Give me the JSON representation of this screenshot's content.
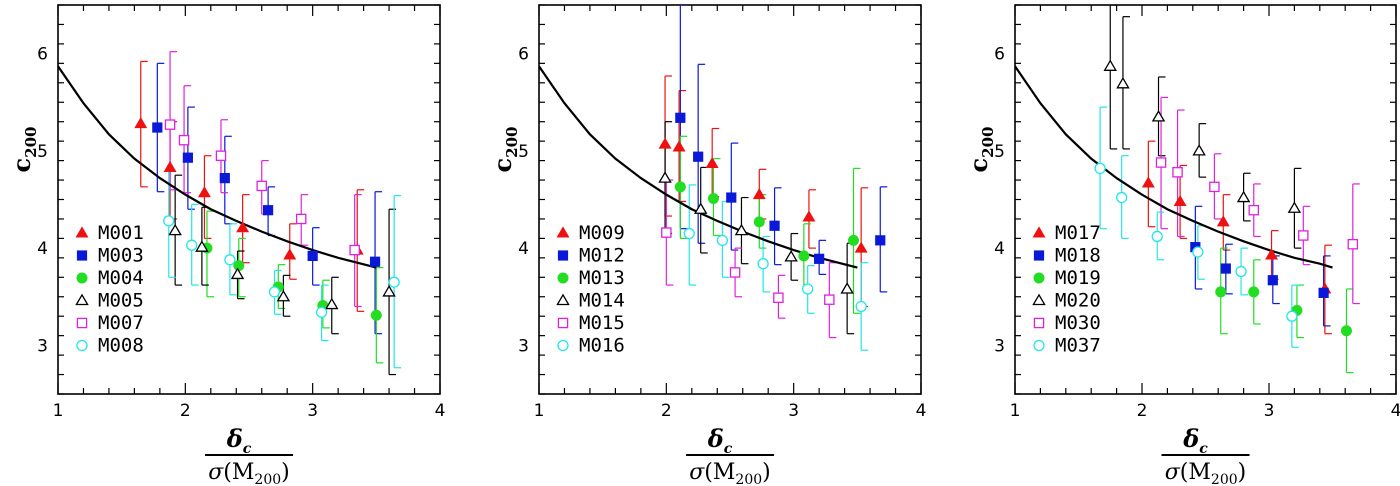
{
  "colors": {
    "red": "#ee1111",
    "blue": "#0a18d8",
    "green": "#22dd22",
    "black": "#000000",
    "magenta": "#dd22dd",
    "cyan": "#22e6e6",
    "curve": "#000000"
  },
  "axis_labels": {
    "y_main": "c",
    "y_sub": "200",
    "x_num_main": "δ",
    "x_num_sub": "c",
    "x_den_sigma": "σ",
    "x_den_open": "(M",
    "x_den_sub": "200",
    "x_den_close": ")"
  },
  "chart_data": [
    {
      "type": "scatter",
      "xlim": [
        1,
        4
      ],
      "ylim": [
        2.5,
        6.5
      ],
      "xticks": [
        1,
        2,
        3,
        4
      ],
      "yticks": [
        3,
        4,
        5,
        6
      ],
      "xlabel": "δc / σ(M200)",
      "ylabel": "c200",
      "legend_position": "lower-left",
      "curve": {
        "x": [
          1.0,
          1.2,
          1.4,
          1.6,
          1.8,
          2.0,
          2.2,
          2.4,
          2.6,
          2.8,
          3.0,
          3.2,
          3.5
        ],
        "y": [
          5.87,
          5.49,
          5.17,
          4.92,
          4.72,
          4.55,
          4.4,
          4.28,
          4.17,
          4.07,
          3.98,
          3.9,
          3.8
        ]
      },
      "series": [
        {
          "name": "M001",
          "marker": "triangle-filled",
          "color": "red",
          "points": [
            {
              "x": 1.65,
              "y": 5.28,
              "lo": 4.63,
              "hi": 5.92
            },
            {
              "x": 1.88,
              "y": 4.83,
              "lo": 4.3,
              "hi": 5.3
            },
            {
              "x": 2.15,
              "y": 4.57,
              "lo": 4.1,
              "hi": 4.95
            },
            {
              "x": 2.45,
              "y": 4.21,
              "lo": 3.85,
              "hi": 4.55
            },
            {
              "x": 2.82,
              "y": 3.93,
              "lo": 3.68,
              "hi": 4.25
            },
            {
              "x": 3.35,
              "y": 3.98,
              "lo": 3.35,
              "hi": 4.6
            }
          ]
        },
        {
          "name": "M003",
          "marker": "square-filled",
          "color": "blue",
          "points": [
            {
              "x": 1.78,
              "y": 5.24,
              "lo": 4.58,
              "hi": 5.9
            },
            {
              "x": 2.02,
              "y": 4.93,
              "lo": 4.4,
              "hi": 5.45
            },
            {
              "x": 2.31,
              "y": 4.72,
              "lo": 4.25,
              "hi": 5.15
            },
            {
              "x": 2.65,
              "y": 4.39,
              "lo": 4.13,
              "hi": 4.63
            },
            {
              "x": 3.0,
              "y": 3.92,
              "lo": 3.62,
              "hi": 4.21
            },
            {
              "x": 3.49,
              "y": 3.86,
              "lo": 3.12,
              "hi": 4.58
            }
          ]
        },
        {
          "name": "M004",
          "marker": "circle-filled",
          "color": "green",
          "points": [
            {
              "x": 2.17,
              "y": 4.0,
              "lo": 3.5,
              "hi": 4.38
            },
            {
              "x": 2.42,
              "y": 3.82,
              "lo": 3.5,
              "hi": 4.1
            },
            {
              "x": 2.73,
              "y": 3.6,
              "lo": 3.38,
              "hi": 3.83
            },
            {
              "x": 3.08,
              "y": 3.41,
              "lo": 3.18,
              "hi": 3.67
            },
            {
              "x": 3.5,
              "y": 3.31,
              "lo": 2.82,
              "hi": 3.8
            }
          ]
        },
        {
          "name": "M005",
          "marker": "triangle-open",
          "color": "black",
          "points": [
            {
              "x": 1.92,
              "y": 4.18,
              "lo": 3.62,
              "hi": 4.75
            },
            {
              "x": 2.13,
              "y": 4.01,
              "lo": 3.62,
              "hi": 4.42
            },
            {
              "x": 2.41,
              "y": 3.73,
              "lo": 3.48,
              "hi": 3.97
            },
            {
              "x": 2.77,
              "y": 3.5,
              "lo": 3.3,
              "hi": 3.72
            },
            {
              "x": 3.15,
              "y": 3.42,
              "lo": 3.12,
              "hi": 3.7
            },
            {
              "x": 3.6,
              "y": 3.55,
              "lo": 2.7,
              "hi": 4.4
            }
          ]
        },
        {
          "name": "M007",
          "marker": "square-open",
          "color": "magenta",
          "points": [
            {
              "x": 1.88,
              "y": 5.27,
              "lo": 4.6,
              "hi": 6.02
            },
            {
              "x": 1.99,
              "y": 5.11,
              "lo": 4.57,
              "hi": 5.67
            },
            {
              "x": 2.28,
              "y": 4.95,
              "lo": 4.57,
              "hi": 5.32
            },
            {
              "x": 2.6,
              "y": 4.64,
              "lo": 4.35,
              "hi": 4.9
            },
            {
              "x": 2.91,
              "y": 4.3,
              "lo": 4.03,
              "hi": 4.55
            },
            {
              "x": 3.33,
              "y": 3.98,
              "lo": 3.4,
              "hi": 4.55
            }
          ]
        },
        {
          "name": "M008",
          "marker": "circle-open",
          "color": "cyan",
          "points": [
            {
              "x": 1.87,
              "y": 4.28,
              "lo": 3.7,
              "hi": 4.8
            },
            {
              "x": 2.05,
              "y": 4.03,
              "lo": 3.62,
              "hi": 4.45
            },
            {
              "x": 2.35,
              "y": 3.88,
              "lo": 3.52,
              "hi": 4.25
            },
            {
              "x": 2.7,
              "y": 3.55,
              "lo": 3.32,
              "hi": 3.77
            },
            {
              "x": 3.07,
              "y": 3.34,
              "lo": 3.05,
              "hi": 3.62
            },
            {
              "x": 3.64,
              "y": 3.65,
              "lo": 2.77,
              "hi": 4.54
            }
          ]
        }
      ]
    },
    {
      "type": "scatter",
      "xlim": [
        1,
        4
      ],
      "ylim": [
        2.5,
        6.5
      ],
      "xticks": [
        1,
        2,
        3,
        4
      ],
      "yticks": [
        3,
        4,
        5,
        6
      ],
      "xlabel": "δc / σ(M200)",
      "ylabel": "c200",
      "legend_position": "lower-left",
      "curve": {
        "x": [
          1.0,
          1.2,
          1.4,
          1.6,
          1.8,
          2.0,
          2.2,
          2.4,
          2.6,
          2.8,
          3.0,
          3.2,
          3.5
        ],
        "y": [
          5.87,
          5.49,
          5.17,
          4.92,
          4.72,
          4.55,
          4.4,
          4.28,
          4.17,
          4.07,
          3.98,
          3.9,
          3.8
        ]
      },
      "series": [
        {
          "name": "M009",
          "marker": "triangle-filled",
          "color": "red",
          "points": [
            {
              "x": 1.99,
              "y": 5.07,
              "lo": 4.33,
              "hi": 5.77
            },
            {
              "x": 2.1,
              "y": 5.04,
              "lo": 4.48,
              "hi": 5.62
            },
            {
              "x": 2.36,
              "y": 4.87,
              "lo": 4.53,
              "hi": 5.23
            },
            {
              "x": 2.73,
              "y": 4.55,
              "lo": 4.3,
              "hi": 4.81
            },
            {
              "x": 3.12,
              "y": 4.32,
              "lo": 4.0,
              "hi": 4.6
            },
            {
              "x": 3.53,
              "y": 4.0,
              "lo": 3.4,
              "hi": 4.62
            }
          ]
        },
        {
          "name": "M012",
          "marker": "square-filled",
          "color": "blue",
          "points": [
            {
              "x": 2.11,
              "y": 5.34,
              "lo": 4.2,
              "hi": 6.5
            },
            {
              "x": 2.25,
              "y": 4.94,
              "lo": 4.05,
              "hi": 5.89
            },
            {
              "x": 2.51,
              "y": 4.52,
              "lo": 3.98,
              "hi": 5.08
            },
            {
              "x": 2.85,
              "y": 4.23,
              "lo": 3.83,
              "hi": 4.62
            },
            {
              "x": 3.2,
              "y": 3.89,
              "lo": 3.73,
              "hi": 4.08
            },
            {
              "x": 3.68,
              "y": 4.08,
              "lo": 3.55,
              "hi": 4.63
            }
          ]
        },
        {
          "name": "M013",
          "marker": "circle-filled",
          "color": "green",
          "points": [
            {
              "x": 2.11,
              "y": 4.63,
              "lo": 4.1,
              "hi": 5.15
            },
            {
              "x": 2.37,
              "y": 4.51,
              "lo": 4.13,
              "hi": 4.92
            },
            {
              "x": 2.73,
              "y": 4.27,
              "lo": 4.0,
              "hi": 4.55
            },
            {
              "x": 3.08,
              "y": 3.92,
              "lo": 3.6,
              "hi": 4.25
            },
            {
              "x": 3.47,
              "y": 4.08,
              "lo": 3.33,
              "hi": 4.82
            }
          ]
        },
        {
          "name": "M014",
          "marker": "triangle-open",
          "color": "black",
          "points": [
            {
              "x": 1.99,
              "y": 4.72,
              "lo": 4.15,
              "hi": 5.3
            },
            {
              "x": 2.27,
              "y": 4.4,
              "lo": 3.95,
              "hi": 4.83
            },
            {
              "x": 2.59,
              "y": 4.18,
              "lo": 3.84,
              "hi": 4.52
            },
            {
              "x": 2.98,
              "y": 3.91,
              "lo": 3.67,
              "hi": 4.15
            },
            {
              "x": 3.42,
              "y": 3.58,
              "lo": 3.12,
              "hi": 4.05
            }
          ]
        },
        {
          "name": "M015",
          "marker": "square-open",
          "color": "magenta",
          "points": [
            {
              "x": 2.0,
              "y": 4.16,
              "lo": 3.62,
              "hi": 4.7
            },
            {
              "x": 2.54,
              "y": 3.75,
              "lo": 3.5,
              "hi": 4.0
            },
            {
              "x": 2.88,
              "y": 3.49,
              "lo": 3.28,
              "hi": 3.72
            },
            {
              "x": 3.28,
              "y": 3.47,
              "lo": 3.08,
              "hi": 3.85
            }
          ]
        },
        {
          "name": "M016",
          "marker": "circle-open",
          "color": "cyan",
          "points": [
            {
              "x": 2.18,
              "y": 4.15,
              "lo": 3.62,
              "hi": 4.65
            },
            {
              "x": 2.44,
              "y": 4.08,
              "lo": 3.7,
              "hi": 4.48
            },
            {
              "x": 2.76,
              "y": 3.84,
              "lo": 3.55,
              "hi": 4.12
            },
            {
              "x": 3.11,
              "y": 3.58,
              "lo": 3.33,
              "hi": 3.82
            },
            {
              "x": 3.53,
              "y": 3.4,
              "lo": 2.95,
              "hi": 3.85
            }
          ]
        }
      ]
    },
    {
      "type": "scatter",
      "xlim": [
        1,
        4
      ],
      "ylim": [
        2.5,
        6.5
      ],
      "xticks": [
        1,
        2,
        3,
        4
      ],
      "yticks": [
        3,
        4,
        5,
        6
      ],
      "xlabel": "δc / σ(M200)",
      "ylabel": "c200",
      "legend_position": "lower-left",
      "curve": {
        "x": [
          1.0,
          1.2,
          1.4,
          1.6,
          1.8,
          2.0,
          2.2,
          2.4,
          2.6,
          2.8,
          3.0,
          3.2,
          3.4,
          3.5
        ],
        "y": [
          5.87,
          5.49,
          5.17,
          4.92,
          4.72,
          4.55,
          4.4,
          4.28,
          4.17,
          4.07,
          3.98,
          3.9,
          3.84,
          3.8
        ]
      },
      "series": [
        {
          "name": "M017",
          "marker": "triangle-filled",
          "color": "red",
          "points": [
            {
              "x": 2.05,
              "y": 4.67,
              "lo": 4.22,
              "hi": 5.1
            },
            {
              "x": 2.3,
              "y": 4.48,
              "lo": 4.1,
              "hi": 4.85
            },
            {
              "x": 2.64,
              "y": 4.27,
              "lo": 3.98,
              "hi": 4.55
            },
            {
              "x": 3.02,
              "y": 3.93,
              "lo": 3.68,
              "hi": 4.18
            },
            {
              "x": 3.44,
              "y": 3.58,
              "lo": 3.12,
              "hi": 4.03
            }
          ]
        },
        {
          "name": "M018",
          "marker": "square-filled",
          "color": "blue",
          "points": [
            {
              "x": 2.42,
              "y": 4.01,
              "lo": 3.58,
              "hi": 4.43
            },
            {
              "x": 2.66,
              "y": 3.79,
              "lo": 3.53,
              "hi": 4.04
            },
            {
              "x": 3.03,
              "y": 3.67,
              "lo": 3.43,
              "hi": 3.92
            },
            {
              "x": 3.43,
              "y": 3.54,
              "lo": 3.2,
              "hi": 3.92
            }
          ]
        },
        {
          "name": "M019",
          "marker": "circle-filled",
          "color": "green",
          "points": [
            {
              "x": 2.62,
              "y": 3.55,
              "lo": 3.12,
              "hi": 4.0
            },
            {
              "x": 2.88,
              "y": 3.55,
              "lo": 3.22,
              "hi": 3.88
            },
            {
              "x": 3.22,
              "y": 3.36,
              "lo": 3.08,
              "hi": 3.62
            },
            {
              "x": 3.61,
              "y": 3.15,
              "lo": 2.72,
              "hi": 3.58
            }
          ]
        },
        {
          "name": "M020",
          "marker": "triangle-open",
          "color": "black",
          "points": [
            {
              "x": 1.75,
              "y": 5.87,
              "lo": 5.02,
              "hi": 6.5
            },
            {
              "x": 1.85,
              "y": 5.69,
              "lo": 5.02,
              "hi": 6.38
            },
            {
              "x": 2.13,
              "y": 5.35,
              "lo": 4.95,
              "hi": 5.76
            },
            {
              "x": 2.45,
              "y": 5.0,
              "lo": 4.73,
              "hi": 5.28
            },
            {
              "x": 2.8,
              "y": 4.52,
              "lo": 4.28,
              "hi": 4.77
            },
            {
              "x": 3.2,
              "y": 4.41,
              "lo": 4.0,
              "hi": 4.82
            }
          ]
        },
        {
          "name": "M030",
          "marker": "square-open",
          "color": "magenta",
          "points": [
            {
              "x": 2.15,
              "y": 4.88,
              "lo": 4.2,
              "hi": 5.55
            },
            {
              "x": 2.28,
              "y": 4.78,
              "lo": 4.12,
              "hi": 5.42
            },
            {
              "x": 2.57,
              "y": 4.63,
              "lo": 4.3,
              "hi": 4.97
            },
            {
              "x": 2.88,
              "y": 4.39,
              "lo": 4.12,
              "hi": 4.66
            },
            {
              "x": 3.27,
              "y": 4.13,
              "lo": 3.83,
              "hi": 4.43
            },
            {
              "x": 3.66,
              "y": 4.04,
              "lo": 3.43,
              "hi": 4.66
            }
          ]
        },
        {
          "name": "M037",
          "marker": "circle-open",
          "color": "cyan",
          "points": [
            {
              "x": 1.67,
              "y": 4.82,
              "lo": 4.2,
              "hi": 5.45
            },
            {
              "x": 1.84,
              "y": 4.52,
              "lo": 4.1,
              "hi": 4.95
            },
            {
              "x": 2.12,
              "y": 4.12,
              "lo": 3.88,
              "hi": 4.37
            },
            {
              "x": 2.44,
              "y": 3.96,
              "lo": 3.68,
              "hi": 4.23
            },
            {
              "x": 2.78,
              "y": 3.76,
              "lo": 3.52,
              "hi": 4.0
            },
            {
              "x": 3.18,
              "y": 3.3,
              "lo": 2.98,
              "hi": 3.62
            }
          ]
        }
      ]
    }
  ]
}
